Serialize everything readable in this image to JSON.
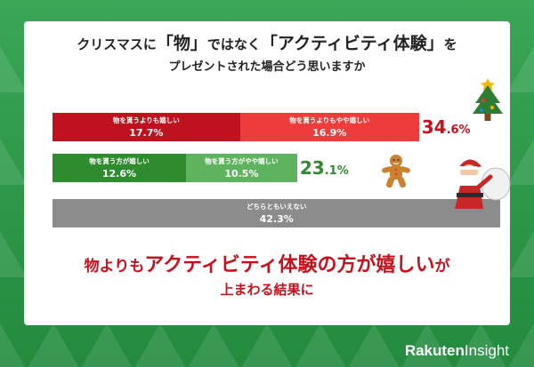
{
  "title": {
    "line1_pre": "クリスマスに",
    "line1_quote1": "「物」",
    "line1_mid": "ではなく",
    "line1_quote2": "「アクティビティ体験」",
    "line1_post": "を",
    "line2": "プレゼントされた場合どう思いますか"
  },
  "chart_data": {
    "type": "bar",
    "orientation": "horizontal-stacked",
    "unit": "%",
    "rows": [
      {
        "segments": [
          {
            "label": "物を貰うよりも嬉しい",
            "value": 17.7,
            "value_text": "17.7%",
            "color": "#c0121e"
          },
          {
            "label": "物を貰うよりもやや嬉しい",
            "value": 16.9,
            "value_text": "16.9%",
            "color": "#ee3b3b"
          }
        ],
        "total_int": "34",
        "total_dec": ".6%",
        "total_color": "#c8101d"
      },
      {
        "segments": [
          {
            "label": "物を貰う方が嬉しい",
            "value": 12.6,
            "value_text": "12.6%",
            "color": "#2e8b2e"
          },
          {
            "label": "物を貰う方がやや嬉しい",
            "value": 10.5,
            "value_text": "10.5%",
            "color": "#5fb35f"
          }
        ],
        "total_int": "23",
        "total_dec": ".1%",
        "total_color": "#2e8b2e"
      },
      {
        "segments": [
          {
            "label": "どちらともいえない",
            "value": 42.3,
            "value_text": "42.3%",
            "color": "#8c8c8c"
          }
        ]
      }
    ]
  },
  "conclusion": {
    "part1": "物よりも",
    "part2": "アクティビティ体験の方が嬉しい",
    "part3": "が",
    "line2": "上まわる結果に"
  },
  "brand": {
    "name": "Rakuten",
    "suffix": "Insight"
  }
}
